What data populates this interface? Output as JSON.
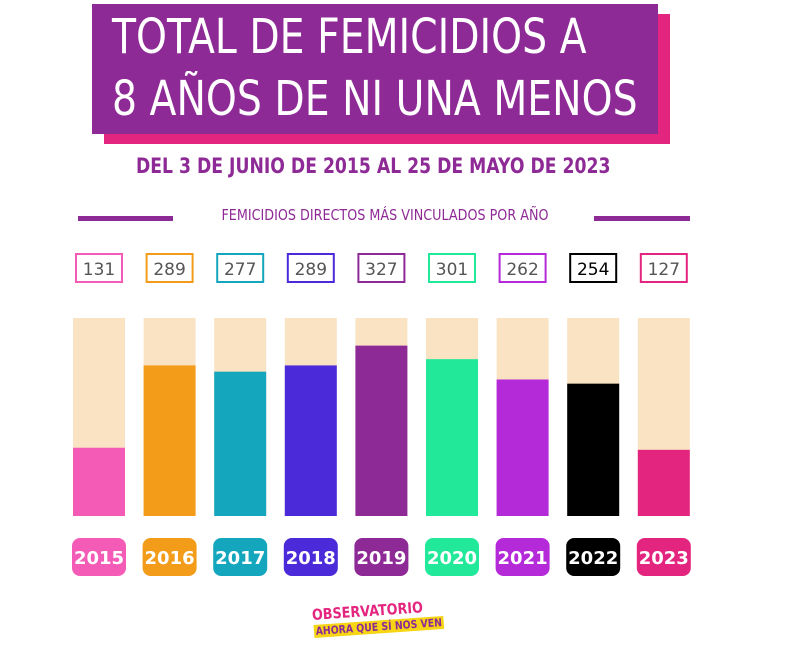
{
  "header": {
    "title_line1": "TOTAL DE FEMICIDIOS A",
    "title_line2": "8 AÑOS DE NI UNA MENOS",
    "subtitle": "DEL 3 DE JUNIO DE 2015 AL 25 DE MAYO DE 2023",
    "series_caption": "FEMICIDIOS DIRECTOS MÁS VINCULADOS POR AÑO"
  },
  "logo": {
    "line1": "OBSERVATORIO",
    "line2": "AHORA QUE SÍ NOS VEN"
  },
  "colors": {
    "title_bg": "#8e2a96",
    "title_shadow": "#e4257f",
    "bar_track": "#f9e3c3"
  },
  "chart_data": {
    "type": "bar",
    "title": "TOTAL DE FEMICIDIOS A 8 AÑOS DE NI UNA MENOS",
    "subtitle": "DEL 3 DE JUNIO DE 2015 AL 25 DE MAYO DE 2023",
    "categories": [
      "2015",
      "2016",
      "2017",
      "2018",
      "2019",
      "2020",
      "2021",
      "2022",
      "2023"
    ],
    "values": [
      131,
      289,
      277,
      289,
      327,
      301,
      262,
      254,
      127
    ],
    "series": [
      {
        "name": "FEMICIDIOS DIRECTOS MÁS VINCULADOS POR AÑO",
        "values": [
          131,
          289,
          277,
          289,
          327,
          301,
          262,
          254,
          127
        ]
      }
    ],
    "colors": [
      "#f45bb7",
      "#f39c1a",
      "#14a6bd",
      "#4b2bd9",
      "#8e2a96",
      "#22e89a",
      "#b42ad8",
      "#000000",
      "#e4257f"
    ],
    "ylim": [
      0,
      380
    ],
    "xlabel": "",
    "ylabel": "",
    "grid": false,
    "legend": "none"
  }
}
